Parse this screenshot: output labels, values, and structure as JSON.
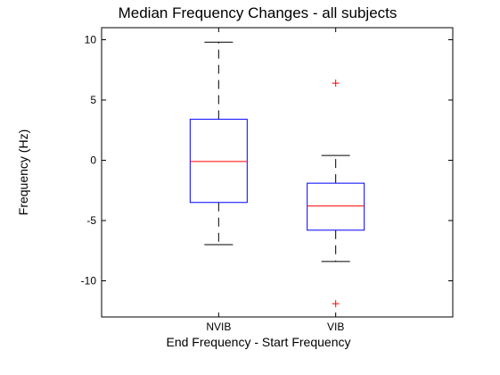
{
  "chart_data": {
    "type": "boxplot",
    "title": "Median Frequency Changes - all subjects",
    "xlabel": "End Frequency - Start Frequency",
    "ylabel": "Frequency (Hz)",
    "ylim": [
      -13,
      11
    ],
    "yticks": [
      10,
      5,
      0,
      -5,
      -10
    ],
    "categories": [
      "NVIB",
      "VIB"
    ],
    "boxes": [
      {
        "category": "NVIB",
        "whisker_low": -7.0,
        "q1": -3.5,
        "median": -0.1,
        "q3": 3.4,
        "whisker_high": 9.8,
        "outliers": []
      },
      {
        "category": "VIB",
        "whisker_low": -8.4,
        "q1": -5.8,
        "median": -3.8,
        "q3": -1.9,
        "whisker_high": 0.4,
        "outliers": [
          6.4,
          -11.9
        ]
      }
    ],
    "grid": false,
    "legend": "none"
  },
  "colors": {
    "box": "#0000ff",
    "median": "#ff0000",
    "outlier": "#ff0000",
    "whisker": "#000000"
  }
}
